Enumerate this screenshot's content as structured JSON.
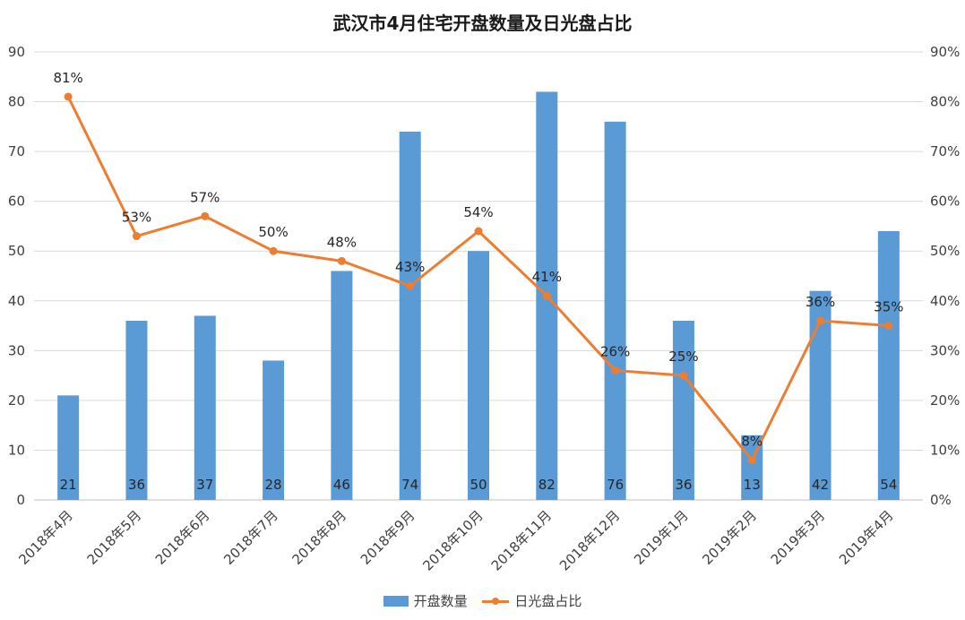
{
  "chart_data": {
    "type": "bar",
    "title": "武汉市4月住宅开盘数量及日光盘占比",
    "categories": [
      "2018年4月",
      "2018年5月",
      "2018年6月",
      "2018年7月",
      "2018年8月",
      "2018年9月",
      "2018年10月",
      "2018年11月",
      "2018年12月",
      "2019年1月",
      "2019年2月",
      "2019年3月",
      "2019年4月"
    ],
    "series": [
      {
        "name": "开盘数量",
        "type": "bar",
        "axis": "left",
        "color": "#5b9bd5",
        "values": [
          21,
          36,
          37,
          28,
          46,
          74,
          50,
          82,
          76,
          36,
          13,
          42,
          54
        ],
        "labels": [
          "21",
          "36",
          "37",
          "28",
          "46",
          "74",
          "50",
          "82",
          "76",
          "36",
          "13",
          "42",
          "54"
        ]
      },
      {
        "name": "日光盘占比",
        "type": "line",
        "axis": "right",
        "color": "#ed7d31",
        "values": [
          81,
          53,
          57,
          50,
          48,
          43,
          54,
          41,
          26,
          25,
          8,
          36,
          35
        ],
        "labels": [
          "81%",
          "53%",
          "57%",
          "50%",
          "48%",
          "43%",
          "54%",
          "41%",
          "26%",
          "25%",
          "8%",
          "36%",
          "35%"
        ]
      }
    ],
    "y_left": {
      "min": 0,
      "max": 90,
      "step": 10,
      "ticks": [
        "0",
        "10",
        "20",
        "30",
        "40",
        "50",
        "60",
        "70",
        "80",
        "90"
      ]
    },
    "y_right": {
      "min": 0,
      "max": 90,
      "step": 10,
      "ticks": [
        "0%",
        "10%",
        "20%",
        "30%",
        "40%",
        "50%",
        "60%",
        "70%",
        "80%",
        "90%"
      ]
    },
    "grid": true,
    "legend_position": "bottom"
  }
}
